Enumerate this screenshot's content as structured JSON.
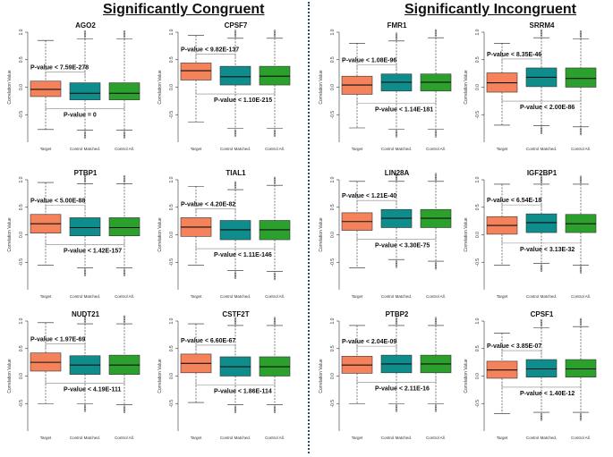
{
  "sections": {
    "left_title": "Significantly Congruent",
    "right_title": "Significantly Incongruent"
  },
  "colors": {
    "target": "#f4825b",
    "control_matched": "#0f8c8c",
    "control_all": "#2ca02c"
  },
  "chart_data": [
    {
      "type": "box",
      "title": "AGO2",
      "ylabel": "Correlation Value",
      "categories": [
        "Target",
        "Control Matched.",
        "Control All."
      ],
      "ylim": [
        -1,
        1
      ],
      "yticks": [
        "-0.5",
        "0.0",
        "0.5",
        "1.0"
      ],
      "q1": [
        -0.17,
        -0.23,
        -0.23
      ],
      "median": [
        -0.04,
        -0.11,
        -0.11
      ],
      "q3": [
        0.11,
        0.08,
        0.08
      ],
      "whisker_low": [
        -0.77,
        -0.78,
        -0.78
      ],
      "whisker_high": [
        0.85,
        0.88,
        0.88
      ],
      "annotations": [
        "P-value < 7.59E-278",
        "P-value  = 0"
      ]
    },
    {
      "type": "box",
      "title": "CPSF7",
      "ylabel": "Correlation Value",
      "categories": [
        "Target",
        "Control Matched.",
        "Control All."
      ],
      "ylim": [
        -1,
        1
      ],
      "yticks": [
        "-0.5",
        "0.0",
        "0.5",
        "1.0"
      ],
      "q1": [
        0.13,
        0.04,
        0.04
      ],
      "median": [
        0.3,
        0.19,
        0.2
      ],
      "q3": [
        0.44,
        0.38,
        0.38
      ],
      "whisker_low": [
        -0.63,
        -0.75,
        -0.75
      ],
      "whisker_high": [
        0.94,
        0.89,
        0.89
      ],
      "annotations": [
        "P-value < 9.82E-137",
        "P-value < 1.10E-215"
      ]
    },
    {
      "type": "box",
      "title": "FMR1",
      "ylabel": "Correlation Value",
      "categories": [
        "Target",
        "Control Matched.",
        "Control All."
      ],
      "ylim": [
        -1,
        1
      ],
      "yticks": [
        "-0.5",
        "0.0",
        "0.5",
        "1.0"
      ],
      "q1": [
        -0.13,
        -0.07,
        -0.07
      ],
      "median": [
        0.04,
        0.09,
        0.09
      ],
      "q3": [
        0.2,
        0.24,
        0.24
      ],
      "whisker_low": [
        -0.74,
        -0.76,
        -0.76
      ],
      "whisker_high": [
        0.8,
        0.84,
        0.9
      ],
      "annotations": [
        "P-value < 1.08E-96",
        "P-value < 1.14E-181"
      ]
    },
    {
      "type": "box",
      "title": "SRRM4",
      "ylabel": "Correlation Value",
      "categories": [
        "Target",
        "Control Matched.",
        "Control All."
      ],
      "ylim": [
        -1,
        1
      ],
      "yticks": [
        "-0.5",
        "0.0",
        "0.5",
        "1.0"
      ],
      "q1": [
        -0.09,
        0.01,
        0.0
      ],
      "median": [
        0.08,
        0.18,
        0.16
      ],
      "q3": [
        0.26,
        0.35,
        0.35
      ],
      "whisker_low": [
        -0.69,
        -0.7,
        -0.72
      ],
      "whisker_high": [
        0.8,
        0.9,
        0.88
      ],
      "annotations": [
        "P-value < 8.35E-46",
        "P-value < 2.00E-86"
      ]
    },
    {
      "type": "box",
      "title": "PTBP1",
      "ylabel": "Correlation Value",
      "categories": [
        "Target",
        "Control Matched.",
        "Control All."
      ],
      "ylim": [
        -1,
        1
      ],
      "yticks": [
        "-0.5",
        "0.0",
        "0.5",
        "1.0"
      ],
      "q1": [
        0.03,
        -0.02,
        -0.02
      ],
      "median": [
        0.2,
        0.13,
        0.13
      ],
      "q3": [
        0.37,
        0.31,
        0.31
      ],
      "whisker_low": [
        -0.55,
        -0.6,
        -0.6
      ],
      "whisker_high": [
        0.95,
        0.93,
        0.93
      ],
      "annotations": [
        "P-value < 5.00E-88",
        "P-value < 1.42E-157"
      ]
    },
    {
      "type": "box",
      "title": "TIAL1",
      "ylabel": "Correlation Value",
      "categories": [
        "Target",
        "Control Matched.",
        "Control All."
      ],
      "ylim": [
        -1,
        1
      ],
      "yticks": [
        "-0.5",
        "0.0",
        "0.5",
        "1.0"
      ],
      "q1": [
        -0.03,
        -0.09,
        -0.09
      ],
      "median": [
        0.14,
        0.09,
        0.09
      ],
      "q3": [
        0.31,
        0.26,
        0.26
      ],
      "whisker_low": [
        -0.55,
        -0.65,
        -0.67
      ],
      "whisker_high": [
        0.88,
        0.82,
        0.9
      ],
      "annotations": [
        "P-value < 4.20E-82",
        "P-value < 1.11E-146"
      ]
    },
    {
      "type": "box",
      "title": "LIN28A",
      "ylabel": "Correlation Value",
      "categories": [
        "Target",
        "Control Matched.",
        "Control All."
      ],
      "ylim": [
        -1,
        1
      ],
      "yticks": [
        "-0.5",
        "0.0",
        "0.5",
        "1.0"
      ],
      "q1": [
        0.08,
        0.13,
        0.13
      ],
      "median": [
        0.24,
        0.3,
        0.3
      ],
      "q3": [
        0.4,
        0.46,
        0.46
      ],
      "whisker_low": [
        -0.6,
        -0.45,
        -0.48
      ],
      "whisker_high": [
        0.97,
        0.97,
        0.97
      ],
      "annotations": [
        "P-value < 1.21E-40",
        "P-value < 3.30E-75"
      ]
    },
    {
      "type": "box",
      "title": "IGF2BP1",
      "ylabel": "Correlation Value",
      "categories": [
        "Target",
        "Control Matched.",
        "Control All."
      ],
      "ylim": [
        -1,
        1
      ],
      "yticks": [
        "-0.5",
        "0.0",
        "0.5",
        "1.0"
      ],
      "q1": [
        0.01,
        0.04,
        0.04
      ],
      "median": [
        0.17,
        0.22,
        0.2
      ],
      "q3": [
        0.33,
        0.38,
        0.37
      ],
      "whisker_low": [
        -0.55,
        -0.52,
        -0.55
      ],
      "whisker_high": [
        0.92,
        0.92,
        0.92
      ],
      "annotations": [
        "P-value < 6.54E-18",
        "P-value < 3.13E-32"
      ]
    },
    {
      "type": "box",
      "title": "NUDT21",
      "ylabel": "Correlation Value",
      "categories": [
        "Target",
        "Control Matched.",
        "Control All."
      ],
      "ylim": [
        -1,
        1
      ],
      "yticks": [
        "-0.5",
        "0.0",
        "0.5",
        "1.0"
      ],
      "q1": [
        0.09,
        0.03,
        0.03
      ],
      "median": [
        0.25,
        0.2,
        0.2
      ],
      "q3": [
        0.42,
        0.37,
        0.38
      ],
      "whisker_low": [
        -0.5,
        -0.5,
        -0.52
      ],
      "whisker_high": [
        0.97,
        0.95,
        0.95
      ],
      "annotations": [
        "P-value < 1.97E-69",
        "P-value < 4.19E-111"
      ]
    },
    {
      "type": "box",
      "title": "CSTF2T",
      "ylabel": "Correlation Value",
      "categories": [
        "Target",
        "Control Matched.",
        "Control All."
      ],
      "ylim": [
        -1,
        1
      ],
      "yticks": [
        "-0.5",
        "0.0",
        "0.5",
        "1.0"
      ],
      "q1": [
        0.06,
        0.0,
        0.0
      ],
      "median": [
        0.23,
        0.17,
        0.17
      ],
      "q3": [
        0.4,
        0.35,
        0.35
      ],
      "whisker_low": [
        -0.48,
        -0.52,
        -0.52
      ],
      "whisker_high": [
        0.95,
        0.92,
        0.92
      ],
      "annotations": [
        "P-value < 6.60E-67",
        "P-value < 1.86E-114"
      ]
    },
    {
      "type": "box",
      "title": "PTBP2",
      "ylabel": "Correlation Value",
      "categories": [
        "Target",
        "Control Matched.",
        "Control All."
      ],
      "ylim": [
        -1,
        1
      ],
      "yticks": [
        "-0.5",
        "0.0",
        "0.5",
        "1.0"
      ],
      "q1": [
        0.05,
        0.06,
        0.06
      ],
      "median": [
        0.2,
        0.22,
        0.22
      ],
      "q3": [
        0.36,
        0.38,
        0.38
      ],
      "whisker_low": [
        -0.5,
        -0.5,
        -0.5
      ],
      "whisker_high": [
        0.92,
        0.92,
        0.92
      ],
      "annotations": [
        "P-value < 2.04E-09",
        "P-value < 2.11E-16"
      ]
    },
    {
      "type": "box",
      "title": "CPSF1",
      "ylabel": "Correlation Value",
      "categories": [
        "Target",
        "Control Matched.",
        "Control All."
      ],
      "ylim": [
        -1,
        1
      ],
      "yticks": [
        "-0.5",
        "0.0",
        "0.5",
        "1.0"
      ],
      "q1": [
        -0.04,
        -0.02,
        -0.02
      ],
      "median": [
        0.11,
        0.13,
        0.13
      ],
      "q3": [
        0.27,
        0.3,
        0.3
      ],
      "whisker_low": [
        -0.68,
        -0.66,
        -0.66
      ],
      "whisker_high": [
        0.78,
        0.88,
        0.9
      ],
      "annotations": [
        "P-value < 3.85E-07",
        "P-value < 1.40E-12"
      ]
    }
  ]
}
